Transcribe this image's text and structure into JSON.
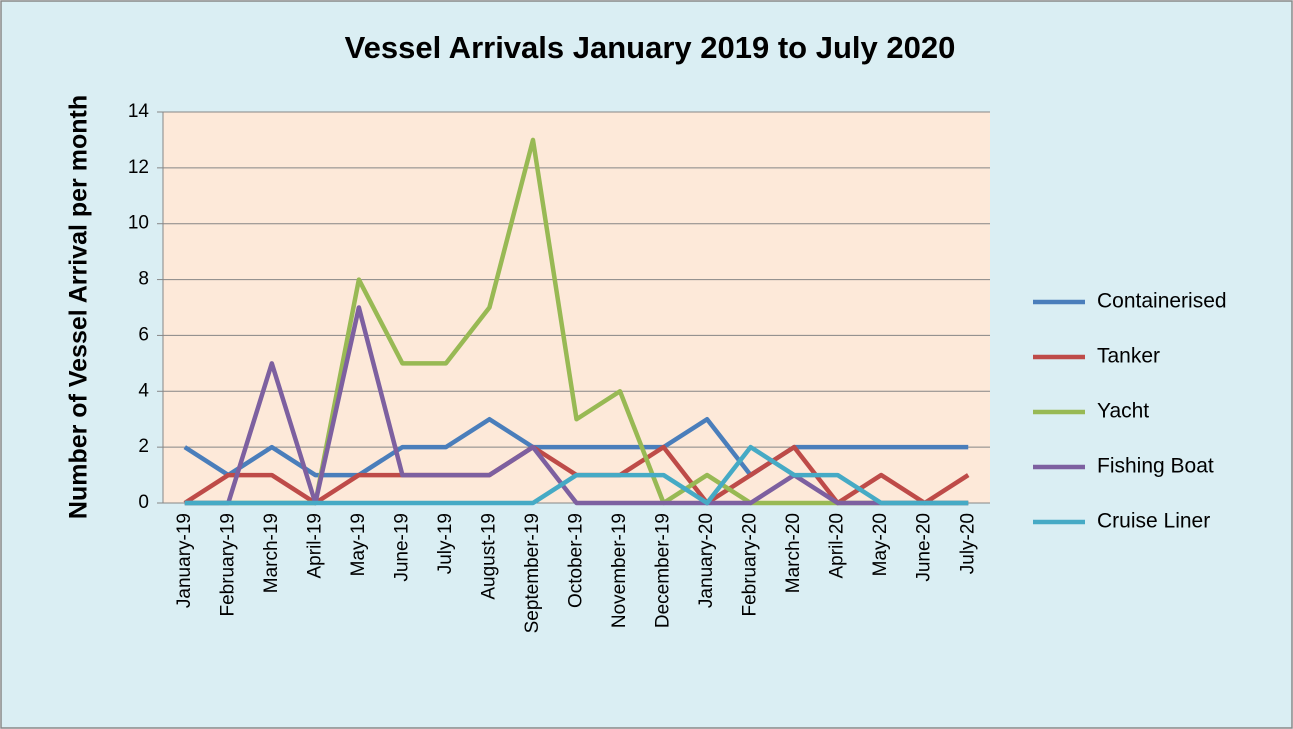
{
  "chart_data": {
    "type": "line",
    "title": "Vessel Arrivals January 2019 to July 2020",
    "y_label": "Number of Vessel Arrival per month",
    "categories": [
      "January-19",
      "February-19",
      "March-19",
      "April-19",
      "May-19",
      "June-19",
      "July-19",
      "August-19",
      "September-19",
      "October-19",
      "November-19",
      "December-19",
      "January-20",
      "February-20",
      "March-20",
      "April-20",
      "May-20",
      "June-20",
      "July-20"
    ],
    "series": [
      {
        "name": "Containerised",
        "color": "#4a7ebb",
        "values": [
          2,
          1,
          2,
          1,
          1,
          2,
          2,
          3,
          2,
          2,
          2,
          2,
          3,
          1,
          2,
          2,
          2,
          2,
          2
        ]
      },
      {
        "name": "Tanker",
        "color": "#be4b48",
        "values": [
          0,
          1,
          1,
          0,
          1,
          1,
          1,
          1,
          2,
          1,
          1,
          2,
          0,
          1,
          2,
          0,
          1,
          0,
          1
        ]
      },
      {
        "name": "Yacht",
        "color": "#98b954",
        "values": [
          0,
          0,
          0,
          0,
          8,
          5,
          5,
          7,
          13,
          3,
          4,
          0,
          1,
          0,
          0,
          0,
          0,
          0,
          0
        ]
      },
      {
        "name": "Fishing Boat",
        "color": "#7d60a0",
        "values": [
          0,
          0,
          5,
          0,
          7,
          1,
          1,
          1,
          2,
          0,
          0,
          0,
          0,
          0,
          1,
          0,
          0,
          0,
          0
        ]
      },
      {
        "name": "Cruise Liner",
        "color": "#46aac5",
        "values": [
          0,
          0,
          0,
          0,
          0,
          0,
          0,
          0,
          0,
          1,
          1,
          1,
          0,
          2,
          1,
          1,
          0,
          0,
          0
        ]
      }
    ],
    "ylim": [
      0,
      14
    ],
    "yticks": [
      0,
      2,
      4,
      6,
      8,
      10,
      12,
      14
    ],
    "grid": true,
    "legend": "right"
  }
}
